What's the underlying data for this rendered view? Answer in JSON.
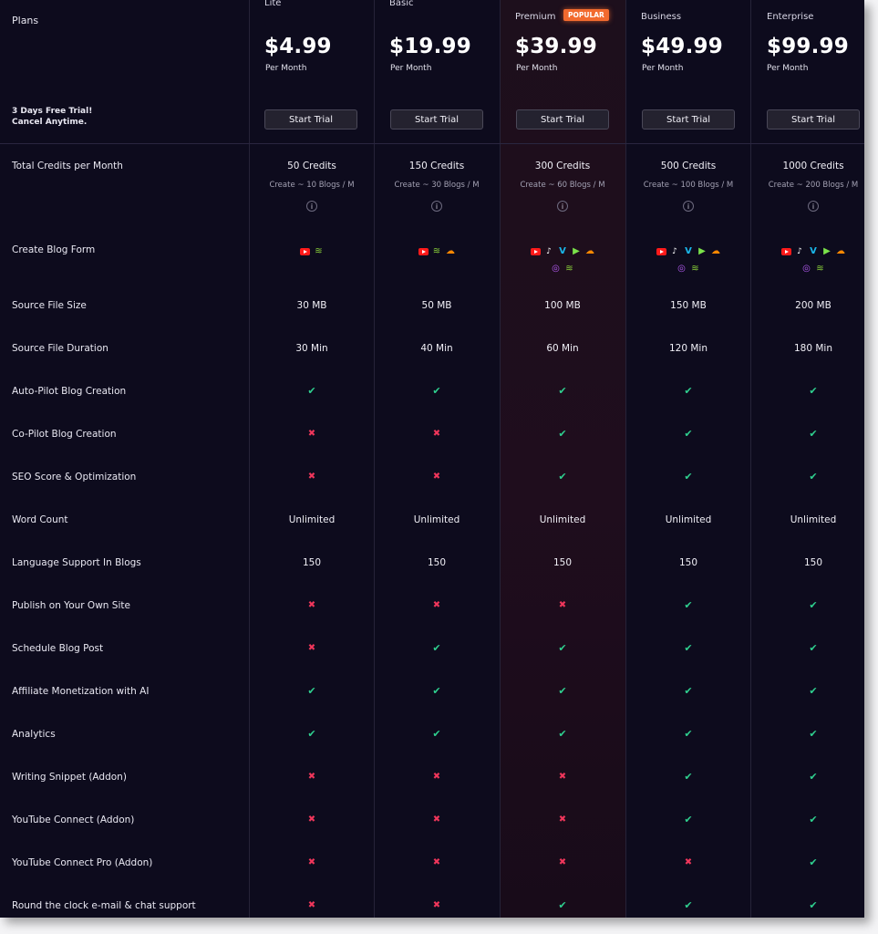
{
  "header": {
    "plans_title": "Plans",
    "trial_note_line1": "3 Days Free Trial!",
    "trial_note_line2": "Cancel Anytime.",
    "popular_badge": "POPULAR"
  },
  "plans": [
    {
      "name": "Lite",
      "price": "$4.99",
      "period": "Per Month",
      "button": "Start Trial"
    },
    {
      "name": "Basic",
      "price": "$19.99",
      "period": "Per Month",
      "button": "Start Trial"
    },
    {
      "name": "Premium",
      "price": "$39.99",
      "period": "Per Month",
      "button": "Start Trial"
    },
    {
      "name": "Business",
      "price": "$49.99",
      "period": "Per Month",
      "button": "Start Trial"
    },
    {
      "name": "Enterprise",
      "price": "$99.99",
      "period": "Per Month",
      "button": "Start Trial"
    }
  ],
  "features": [
    {
      "label": "Total Credits per Month"
    },
    {
      "label": "Create Blog Form"
    },
    {
      "label": "Source File Size"
    },
    {
      "label": "Source File Duration"
    },
    {
      "label": "Auto-Pilot Blog Creation"
    },
    {
      "label": "Co-Pilot Blog Creation"
    },
    {
      "label": "SEO Score & Optimization"
    },
    {
      "label": "Word Count"
    },
    {
      "label": "Language Support In Blogs"
    },
    {
      "label": "Publish on Your Own Site"
    },
    {
      "label": "Schedule Blog Post"
    },
    {
      "label": "Affiliate Monetization with AI"
    },
    {
      "label": "Analytics"
    },
    {
      "label": "Writing Snippet (Addon)"
    },
    {
      "label": "YouTube Connect (Addon)"
    },
    {
      "label": "YouTube Connect Pro (Addon)"
    },
    {
      "label": "Round the clock e-mail & chat support"
    }
  ],
  "credits": [
    {
      "value": "50 Credits",
      "sub": "Create ~ 10 Blogs / M"
    },
    {
      "value": "150 Credits",
      "sub": "Create ~ 30 Blogs / M"
    },
    {
      "value": "300 Credits",
      "sub": "Create ~ 60 Blogs / M"
    },
    {
      "value": "500 Credits",
      "sub": "Create ~ 100 Blogs / M"
    },
    {
      "value": "1000 Credits",
      "sub": "Create ~ 200 Blogs / M"
    }
  ],
  "info_glyph": "i",
  "source_file_size": [
    "30 MB",
    "50 MB",
    "100 MB",
    "150 MB",
    "200 MB"
  ],
  "source_file_duration": [
    "30 Min",
    "40 Min",
    "60 Min",
    "120 Min",
    "180 Min"
  ],
  "word_count": [
    "Unlimited",
    "Unlimited",
    "Unlimited",
    "Unlimited",
    "Unlimited"
  ],
  "language_support": [
    "150",
    "150",
    "150",
    "150",
    "150"
  ],
  "check_glyph": "✔",
  "cross_glyph": "✖",
  "icon_glyphs": {
    "tiktok": "♪",
    "vimeo": "V",
    "rumble": "▶",
    "soundcloud": "☁",
    "podcast": "◎",
    "rss": "≋"
  },
  "availability": {
    "auto_pilot": [
      true,
      true,
      true,
      true,
      true
    ],
    "co_pilot": [
      false,
      false,
      true,
      true,
      true
    ],
    "seo": [
      false,
      false,
      true,
      true,
      true
    ],
    "publish_own_site": [
      false,
      false,
      false,
      true,
      true
    ],
    "schedule": [
      false,
      true,
      true,
      true,
      true
    ],
    "affiliate": [
      true,
      true,
      true,
      true,
      true
    ],
    "analytics": [
      true,
      true,
      true,
      true,
      true
    ],
    "writing_snippet": [
      false,
      false,
      false,
      true,
      true
    ],
    "youtube_connect": [
      false,
      false,
      false,
      true,
      true
    ],
    "youtube_connect_pro": [
      false,
      false,
      false,
      false,
      true
    ],
    "support": [
      false,
      false,
      true,
      true,
      true
    ]
  },
  "blog_form_sources": [
    [
      "youtube",
      "rss"
    ],
    [
      "youtube",
      "rss",
      "soundcloud"
    ],
    [
      "youtube",
      "tiktok",
      "vimeo",
      "rumble",
      "soundcloud",
      "podcast",
      "rss"
    ],
    [
      "youtube",
      "tiktok",
      "vimeo",
      "rumble",
      "soundcloud",
      "podcast",
      "rss"
    ],
    [
      "youtube",
      "tiktok",
      "vimeo",
      "rumble",
      "soundcloud",
      "podcast",
      "rss"
    ]
  ],
  "colors": {
    "background": "#0d0b1d",
    "check": "#2fd08f",
    "cross": "#f0365b",
    "popular": "#f26a2e"
  }
}
